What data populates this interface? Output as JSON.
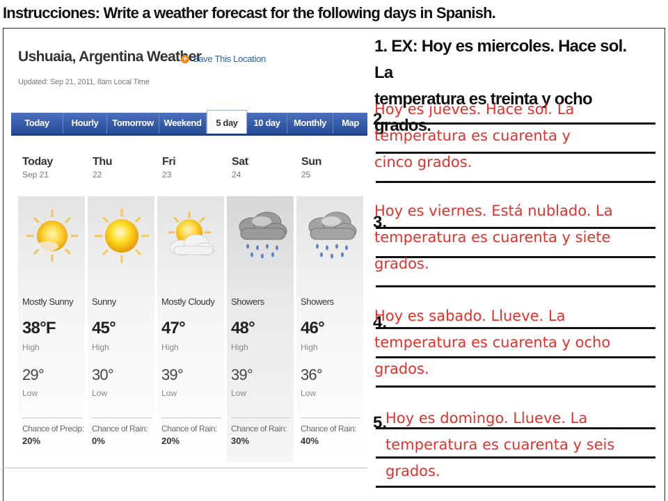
{
  "instructions": "Instrucciones: Write a weather forecast for the following days in Spanish.",
  "widget": {
    "title": "Ushuaia, Argentina Weather",
    "save_label": "Save This Location",
    "save_icon": "plus-circle-icon",
    "updated": "Updated: Sep 21, 2011, 8am Local Time",
    "tabs": [
      "Today",
      "Hourly",
      "Tomorrow",
      "Weekend",
      "5 day",
      "10 day",
      "Monthly",
      "Map"
    ],
    "active_tab": "5 day",
    "days": [
      {
        "name": "Today",
        "date": "Sep 21",
        "icon": "mostly-sunny-icon",
        "condition": "Mostly Sunny",
        "high": "38°F",
        "high_label": "High",
        "low": "29°",
        "low_label": "Low",
        "chance_label": "Chance of Precip:",
        "chance": "20%"
      },
      {
        "name": "Thu",
        "date": "22",
        "icon": "sunny-icon",
        "condition": "Sunny",
        "high": "45°",
        "high_label": "High",
        "low": "30°",
        "low_label": "Low",
        "chance_label": "Chance of Rain:",
        "chance": "0%"
      },
      {
        "name": "Fri",
        "date": "23",
        "icon": "mostly-cloudy-icon",
        "condition": "Mostly Cloudy",
        "high": "47°",
        "high_label": "High",
        "low": "39°",
        "low_label": "Low",
        "chance_label": "Chance of Rain:",
        "chance": "20%"
      },
      {
        "name": "Sat",
        "date": "24",
        "icon": "showers-icon",
        "condition": "Showers",
        "high": "48°",
        "high_label": "High",
        "low": "39°",
        "low_label": "Low",
        "chance_label": "Chance of Rain:",
        "chance": "30%"
      },
      {
        "name": "Sun",
        "date": "25",
        "icon": "showers-icon",
        "condition": "Showers",
        "high": "46°",
        "high_label": "High",
        "low": "36°",
        "low_label": "Low",
        "chance_label": "Chance of Rain:",
        "chance": "40%"
      }
    ]
  },
  "worksheet": {
    "example_line1": "1. EX: Hoy es miercoles. Hace sol. La",
    "example_line2": "temperatura es treinta y ocho grados.",
    "numbers": [
      "2.",
      "3.",
      "4.",
      "5."
    ],
    "answers": [
      [
        "Hoy es jueves. Hace sol. La",
        "temperatura es cuarenta y",
        "cinco grados."
      ],
      [
        "Hoy es viernes. Está nublado. La",
        "temperatura es cuarenta y siete",
        "grados."
      ],
      [
        "Hoy es sabado. Llueve. La",
        "temperatura es cuarenta y ocho",
        "grados."
      ],
      [
        "Hoy es domingo. Llueve. La",
        "temperatura es cuarenta y seis",
        "grados."
      ]
    ]
  },
  "colors": {
    "answer": "#e8302a",
    "tab_bar": "#2a4d9b",
    "save_link": "#2c5ea8"
  }
}
